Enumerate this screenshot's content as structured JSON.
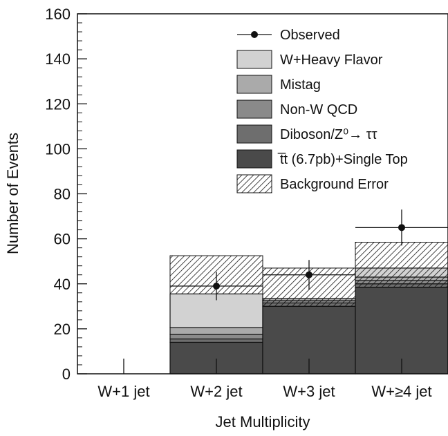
{
  "chart_data": {
    "type": "bar",
    "stacked": true,
    "title": "",
    "xlabel": "Jet Multiplicity",
    "ylabel": "Number of Events",
    "ylim": [
      0,
      160
    ],
    "yticks": [
      0,
      20,
      40,
      60,
      80,
      100,
      120,
      140,
      160
    ],
    "categories": [
      "W+1 jet",
      "W+2 jet",
      "W+3 jet",
      "W+≥4 jet"
    ],
    "legend_position": "top-right",
    "series": [
      {
        "name": "t̅t (6.7pb)+Single Top",
        "color": "#4a4a4a",
        "values": [
          0,
          14,
          30,
          38.5
        ]
      },
      {
        "name": "Diboson/Z⁰→ ττ",
        "color": "#6e6e6e",
        "values": [
          0,
          1.5,
          1.5,
          1.5
        ]
      },
      {
        "name": "Non-W QCD",
        "color": "#8a8a8a",
        "values": [
          0,
          2,
          1,
          1.5
        ]
      },
      {
        "name": "Mistag",
        "color": "#aaaaaa",
        "values": [
          0,
          3,
          1,
          1.5
        ]
      },
      {
        "name": "W+Heavy Flavor",
        "color": "#d2d2d2",
        "values": [
          0,
          15,
          0,
          4
        ]
      }
    ],
    "background_error": {
      "name": "Background Error",
      "values": [
        [
          0,
          0
        ],
        [
          35.5,
          52.5
        ],
        [
          30,
          47
        ],
        [
          38.5,
          58.5
        ]
      ]
    },
    "observed": {
      "name": "Observed",
      "x": [
        1,
        2,
        3
      ],
      "values": [
        39,
        44,
        65
      ],
      "err_low": [
        32.7,
        37.4,
        57
      ],
      "err_high": [
        45.3,
        50.6,
        73
      ]
    }
  }
}
